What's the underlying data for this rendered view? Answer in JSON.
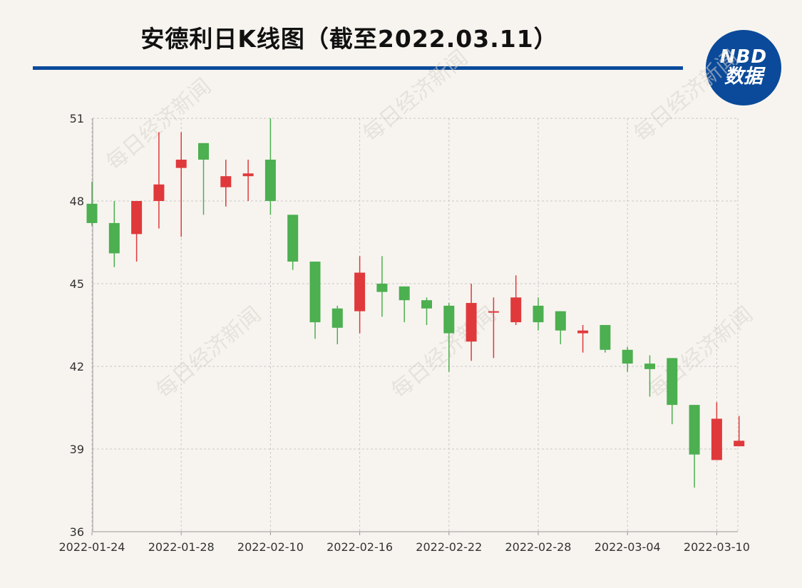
{
  "title": "安德利日K线图（截至2022.03.11）",
  "logo": {
    "brand": "NBD",
    "sub": "数据",
    "color": "#0b4a9a"
  },
  "watermark": "每日经济新闻",
  "colors": {
    "up": "#e0393b",
    "down": "#4caf50",
    "grid": "#c8c8c8",
    "title_rule": "#0b4a9a"
  },
  "chart_data": {
    "type": "candlestick",
    "ylim": [
      36,
      51
    ],
    "yticks": [
      36,
      39,
      42,
      45,
      48,
      51
    ],
    "xtick_labels": [
      "2022-01-24",
      "2022-01-28",
      "2022-02-10",
      "2022-02-16",
      "2022-02-22",
      "2022-02-28",
      "2022-03-04",
      "2022-03-10"
    ],
    "xtick_every": 4,
    "candles": [
      {
        "date": "2022-01-24",
        "open": 47.9,
        "close": 47.2,
        "high": 48.7,
        "low": 47.1
      },
      {
        "date": "2022-01-25",
        "open": 47.2,
        "close": 46.1,
        "high": 48.0,
        "low": 45.6
      },
      {
        "date": "2022-01-26",
        "open": 46.8,
        "close": 48.0,
        "high": 48.0,
        "low": 45.8
      },
      {
        "date": "2022-01-27",
        "open": 48.0,
        "close": 48.6,
        "high": 50.5,
        "low": 47.0
      },
      {
        "date": "2022-01-28",
        "open": 49.2,
        "close": 49.5,
        "high": 50.5,
        "low": 46.7
      },
      {
        "date": "2022-01-29",
        "open": 50.1,
        "close": 49.5,
        "high": 50.1,
        "low": 47.5
      },
      {
        "date": "2022-02-07",
        "open": 48.5,
        "close": 48.9,
        "high": 49.5,
        "low": 47.8
      },
      {
        "date": "2022-02-08",
        "open": 48.9,
        "close": 49.0,
        "high": 49.5,
        "low": 48.0
      },
      {
        "date": "2022-02-10",
        "open": 49.5,
        "close": 48.0,
        "high": 51.0,
        "low": 47.5
      },
      {
        "date": "2022-02-11",
        "open": 47.5,
        "close": 45.8,
        "high": 47.5,
        "low": 45.5
      },
      {
        "date": "2022-02-14",
        "open": 45.8,
        "close": 43.6,
        "high": 45.8,
        "low": 43.0
      },
      {
        "date": "2022-02-15",
        "open": 44.1,
        "close": 43.4,
        "high": 44.2,
        "low": 42.8
      },
      {
        "date": "2022-02-16",
        "open": 44.0,
        "close": 45.4,
        "high": 46.0,
        "low": 43.2
      },
      {
        "date": "2022-02-17",
        "open": 45.0,
        "close": 44.7,
        "high": 46.0,
        "low": 43.8
      },
      {
        "date": "2022-02-18",
        "open": 44.9,
        "close": 44.4,
        "high": 44.9,
        "low": 43.6
      },
      {
        "date": "2022-02-21",
        "open": 44.4,
        "close": 44.1,
        "high": 44.5,
        "low": 43.5
      },
      {
        "date": "2022-02-22",
        "open": 44.2,
        "close": 43.2,
        "high": 44.3,
        "low": 41.8
      },
      {
        "date": "2022-02-23",
        "open": 42.9,
        "close": 44.3,
        "high": 45.0,
        "low": 42.2
      },
      {
        "date": "2022-02-24",
        "open": 44.0,
        "close": 44.0,
        "high": 44.5,
        "low": 42.3
      },
      {
        "date": "2022-02-25",
        "open": 43.6,
        "close": 44.5,
        "high": 45.3,
        "low": 43.5
      },
      {
        "date": "2022-02-28",
        "open": 44.2,
        "close": 43.6,
        "high": 44.5,
        "low": 43.3
      },
      {
        "date": "2022-03-01",
        "open": 44.0,
        "close": 43.3,
        "high": 44.0,
        "low": 42.8
      },
      {
        "date": "2022-03-02",
        "open": 43.2,
        "close": 43.3,
        "high": 43.5,
        "low": 42.5
      },
      {
        "date": "2022-03-03",
        "open": 43.5,
        "close": 42.6,
        "high": 43.5,
        "low": 42.5
      },
      {
        "date": "2022-03-04",
        "open": 42.6,
        "close": 42.1,
        "high": 42.7,
        "low": 41.8
      },
      {
        "date": "2022-03-07",
        "open": 42.1,
        "close": 41.9,
        "high": 42.4,
        "low": 40.9
      },
      {
        "date": "2022-03-08",
        "open": 42.3,
        "close": 40.6,
        "high": 42.3,
        "low": 39.9
      },
      {
        "date": "2022-03-09",
        "open": 40.6,
        "close": 38.8,
        "high": 40.6,
        "low": 37.6
      },
      {
        "date": "2022-03-10",
        "open": 38.6,
        "close": 40.1,
        "high": 40.7,
        "low": 38.6
      },
      {
        "date": "2022-03-11",
        "open": 39.1,
        "close": 39.3,
        "high": 40.2,
        "low": 39.1
      }
    ],
    "grid": true,
    "legend": "none"
  }
}
